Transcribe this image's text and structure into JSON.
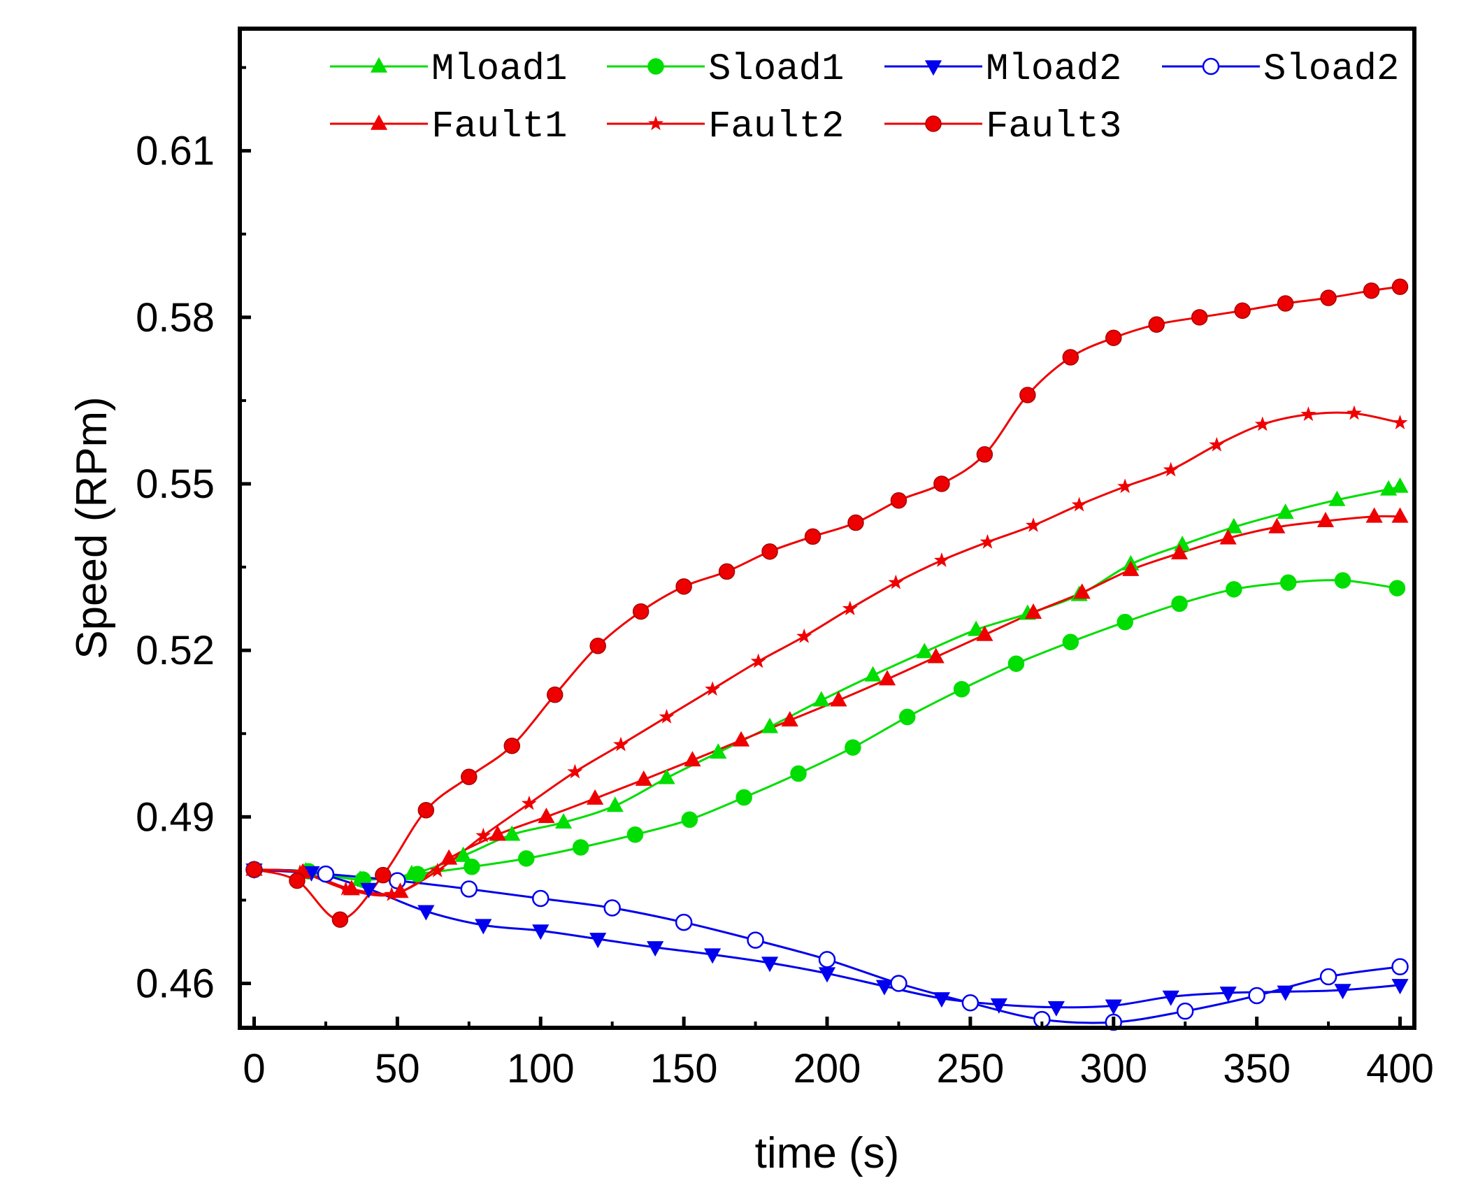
{
  "chart_data": {
    "type": "line",
    "title": "",
    "xlabel": "time (s)",
    "ylabel": "Speed (RPm)",
    "xlim": [
      -5,
      405
    ],
    "ylim": [
      0.452,
      0.632
    ],
    "xticks": [
      0,
      50,
      100,
      150,
      200,
      250,
      300,
      350,
      400
    ],
    "yticks": [
      0.46,
      0.49,
      0.52,
      0.55,
      0.58,
      0.61
    ],
    "xtick_labels": [
      "0",
      "50",
      "100",
      "150",
      "200",
      "250",
      "300",
      "350",
      "400"
    ],
    "ytick_labels": [
      "0.46",
      "0.49",
      "0.52",
      "0.55",
      "0.58",
      "0.61"
    ],
    "grid": false,
    "legend_position": "top",
    "series": [
      {
        "name": "Mload1",
        "color": "#00dd00",
        "marker": "triangle-up",
        "x": [
          0,
          18,
          37,
          55,
          73,
          90,
          108,
          126,
          144,
          162,
          180,
          198,
          216,
          234,
          252,
          270,
          288,
          306,
          324,
          342,
          360,
          378,
          396,
          400
        ],
        "y": [
          0.4805,
          0.4802,
          0.4787,
          0.4797,
          0.483,
          0.4868,
          0.489,
          0.492,
          0.497,
          0.5016,
          0.5062,
          0.511,
          0.5155,
          0.5197,
          0.5237,
          0.5266,
          0.53,
          0.5355,
          0.539,
          0.5422,
          0.5448,
          0.5471,
          0.549,
          0.5495
        ]
      },
      {
        "name": "Sload1",
        "color": "#00dd00",
        "marker": "circle",
        "x": [
          0,
          19,
          38,
          57,
          76,
          95,
          114,
          133,
          152,
          171,
          190,
          209,
          228,
          247,
          266,
          285,
          304,
          323,
          342,
          361,
          380,
          399
        ],
        "y": [
          0.4805,
          0.4802,
          0.4787,
          0.4797,
          0.481,
          0.4825,
          0.4845,
          0.4868,
          0.4895,
          0.4935,
          0.4978,
          0.5025,
          0.508,
          0.513,
          0.5176,
          0.5215,
          0.5251,
          0.5284,
          0.531,
          0.5322,
          0.5326,
          0.5312
        ]
      },
      {
        "name": "Mload2",
        "color": "#0000ee",
        "marker": "triangle-down",
        "x": [
          0,
          20,
          40,
          60,
          80,
          100,
          120,
          140,
          160,
          180,
          200,
          220,
          240,
          260,
          280,
          300,
          320,
          340,
          360,
          380,
          400
        ],
        "y": [
          0.4805,
          0.48,
          0.477,
          0.473,
          0.4705,
          0.4695,
          0.468,
          0.4665,
          0.4652,
          0.4637,
          0.4618,
          0.4595,
          0.4573,
          0.4562,
          0.4557,
          0.456,
          0.4576,
          0.4583,
          0.4585,
          0.4588,
          0.4597
        ]
      },
      {
        "name": "Sload2",
        "color": "#0000ee",
        "marker": "circle-open",
        "x": [
          0,
          25,
          50,
          75,
          100,
          125,
          150,
          175,
          200,
          225,
          250,
          275,
          300,
          325,
          350,
          375,
          400
        ],
        "y": [
          0.4805,
          0.4797,
          0.4785,
          0.477,
          0.4753,
          0.4736,
          0.471,
          0.4678,
          0.4643,
          0.46,
          0.4565,
          0.4535,
          0.453,
          0.455,
          0.4578,
          0.4612,
          0.463
        ]
      },
      {
        "name": "Fault1",
        "color": "#ee0000",
        "marker": "triangle-up",
        "x": [
          0,
          17,
          34,
          51,
          68,
          85,
          102,
          119,
          136,
          153,
          170,
          187,
          204,
          221,
          238,
          255,
          272,
          289,
          306,
          323,
          340,
          357,
          374,
          391,
          400
        ],
        "y": [
          0.4805,
          0.48,
          0.477,
          0.4765,
          0.4825,
          0.4868,
          0.49,
          0.4933,
          0.4967,
          0.5002,
          0.5038,
          0.5074,
          0.511,
          0.5148,
          0.5188,
          0.5228,
          0.5268,
          0.5304,
          0.5345,
          0.5375,
          0.5402,
          0.5422,
          0.5433,
          0.5441,
          0.5441
        ]
      },
      {
        "name": "Fault2",
        "color": "#ee0000",
        "marker": "star",
        "x": [
          0,
          16,
          32,
          48,
          64,
          80,
          96,
          112,
          128,
          144,
          160,
          176,
          192,
          208,
          224,
          240,
          256,
          272,
          288,
          304,
          320,
          336,
          352,
          368,
          384,
          400
        ],
        "y": [
          0.4805,
          0.48,
          0.477,
          0.476,
          0.4803,
          0.4866,
          0.4924,
          0.4981,
          0.503,
          0.508,
          0.513,
          0.518,
          0.5225,
          0.5275,
          0.5322,
          0.5362,
          0.5395,
          0.5425,
          0.5462,
          0.5495,
          0.5525,
          0.557,
          0.5607,
          0.5625,
          0.5627,
          0.561
        ]
      },
      {
        "name": "Fault3",
        "color": "#ee0000",
        "marker": "circle",
        "x": [
          0,
          15,
          30,
          45,
          60,
          75,
          90,
          105,
          120,
          135,
          150,
          165,
          180,
          195,
          210,
          225,
          240,
          255,
          270,
          285,
          300,
          315,
          330,
          345,
          360,
          375,
          390,
          400
        ],
        "y": [
          0.4805,
          0.4785,
          0.4715,
          0.4795,
          0.4912,
          0.4972,
          0.5028,
          0.512,
          0.5208,
          0.527,
          0.5315,
          0.5342,
          0.5378,
          0.5405,
          0.543,
          0.547,
          0.55,
          0.5553,
          0.566,
          0.5728,
          0.5763,
          0.5787,
          0.58,
          0.5812,
          0.5825,
          0.5835,
          0.5848,
          0.5855
        ]
      }
    ]
  }
}
